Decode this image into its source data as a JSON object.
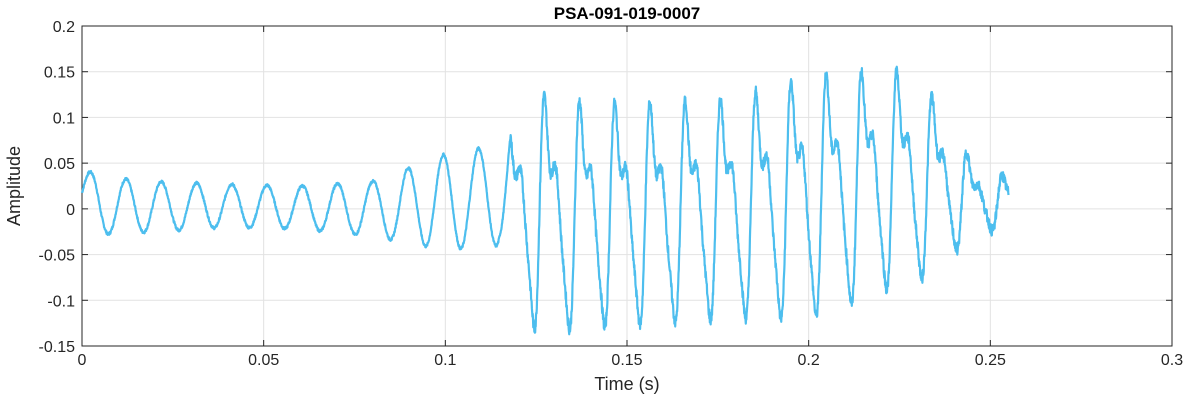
{
  "chart_data": {
    "type": "line",
    "title": "PSA-091-019-0007",
    "xlabel": "Time (s)",
    "ylabel": "Amplitude",
    "xlim": [
      0,
      0.3
    ],
    "ylim": [
      -0.15,
      0.2
    ],
    "grid": true,
    "x_ticks": [
      0,
      0.05,
      0.1,
      0.15,
      0.2,
      0.25,
      0.3
    ],
    "x_tick_labels": [
      "0",
      "0.05",
      "0.1",
      "0.15",
      "0.2",
      "0.25",
      "0.3"
    ],
    "y_ticks": [
      -0.15,
      -0.1,
      -0.05,
      0,
      0.05,
      0.1,
      0.15,
      0.2
    ],
    "y_tick_labels": [
      "-0.15",
      "-0.1",
      "-0.05",
      "0",
      "0.05",
      "0.1",
      "0.15",
      "0.2"
    ],
    "series": [
      {
        "color": "#4DBEEE",
        "x_start": 0,
        "x_end": 0.255,
        "envelope": {
          "t": [
            0,
            0.005,
            0.02,
            0.04,
            0.06,
            0.08,
            0.1,
            0.115,
            0.12,
            0.125,
            0.14,
            0.16,
            0.18,
            0.2,
            0.215,
            0.22,
            0.23,
            0.24,
            0.245,
            0.25,
            0.255
          ],
          "max": [
            0.045,
            0.035,
            0.03,
            0.027,
            0.025,
            0.03,
            0.06,
            0.07,
            0.11,
            0.135,
            0.125,
            0.125,
            0.13,
            0.155,
            0.16,
            0.165,
            0.15,
            0.1,
            0.05,
            0.045,
            0.035
          ],
          "min": [
            -0.01,
            -0.028,
            -0.025,
            -0.02,
            -0.022,
            -0.03,
            -0.045,
            -0.04,
            -0.1,
            -0.135,
            -0.13,
            -0.125,
            -0.12,
            -0.12,
            -0.1,
            -0.09,
            -0.08,
            -0.05,
            -0.02,
            -0.025,
            -0.015
          ]
        },
        "period_s": 0.0097
      }
    ]
  }
}
